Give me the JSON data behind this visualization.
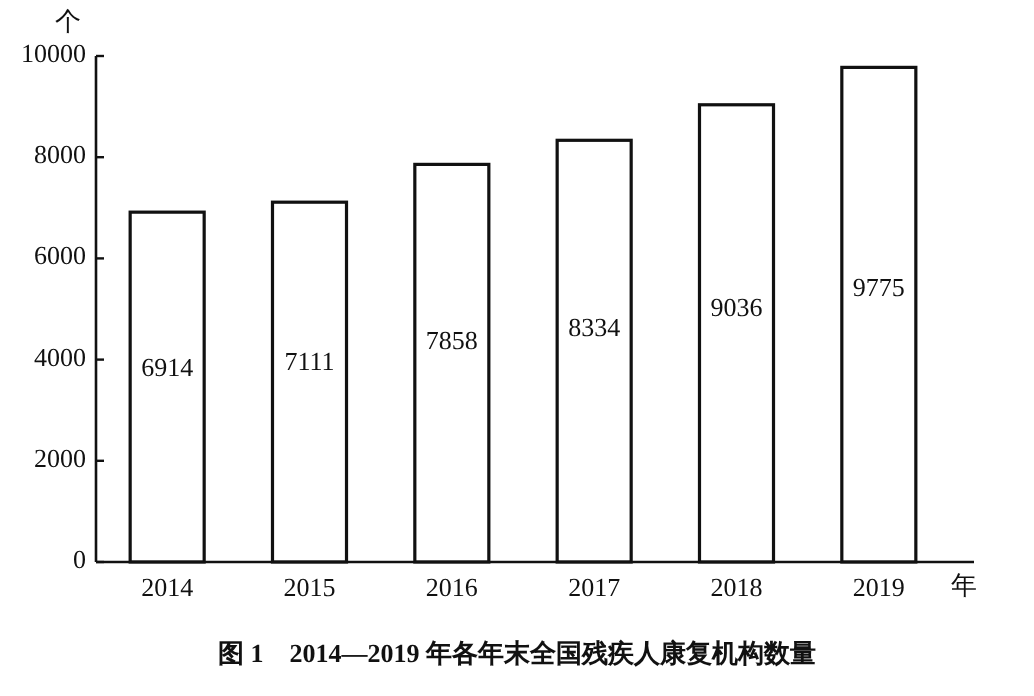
{
  "chart_data": {
    "type": "bar",
    "title": "图 1　2014—2019 年各年末全国残疾人康复机构数量",
    "ylabel": "个",
    "xlabel": "年",
    "categories": [
      "2014",
      "2015",
      "2016",
      "2017",
      "2018",
      "2019"
    ],
    "values": [
      6914,
      7111,
      7858,
      8334,
      9036,
      9775
    ],
    "color": "#ffffff",
    "ylim": [
      0,
      10000
    ],
    "yticks": [
      0,
      2000,
      4000,
      6000,
      8000,
      10000
    ],
    "data_labels": true,
    "grid": false
  }
}
